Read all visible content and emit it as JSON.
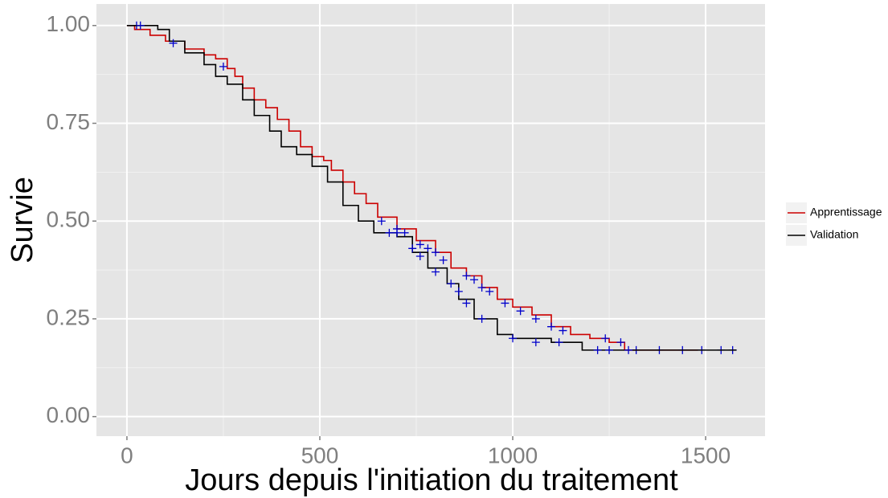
{
  "chart_data": {
    "type": "step",
    "xlabel": "Jours depuis l'initiation du traitement",
    "ylabel": "Survie",
    "xlim": [
      -79,
      1654
    ],
    "ylim": [
      -0.05,
      1.055
    ],
    "xticks": [
      0,
      500,
      1000,
      1500
    ],
    "yticks": [
      {
        "value": 0,
        "label": "0.00"
      },
      {
        "value": 0.25,
        "label": "0.25"
      },
      {
        "value": 0.5,
        "label": "0.50"
      },
      {
        "value": 0.75,
        "label": "0.75"
      },
      {
        "value": 1,
        "label": "1.00"
      }
    ],
    "grid": true,
    "minor_grid": true,
    "legend": "right",
    "censor_color": "#0000cc",
    "series": [
      {
        "name": "Apprentissage",
        "color": "#cc0000",
        "x": [
          0,
          20,
          60,
          100,
          150,
          200,
          230,
          260,
          280,
          300,
          330,
          360,
          390,
          420,
          450,
          480,
          510,
          530,
          560,
          590,
          620,
          650,
          700,
          750,
          800,
          840,
          880,
          920,
          960,
          1000,
          1050,
          1100,
          1150,
          1200,
          1250,
          1290,
          1480
        ],
        "values": [
          1.0,
          0.99,
          0.975,
          0.96,
          0.94,
          0.925,
          0.915,
          0.89,
          0.87,
          0.84,
          0.81,
          0.79,
          0.76,
          0.73,
          0.69,
          0.665,
          0.655,
          0.63,
          0.6,
          0.57,
          0.545,
          0.51,
          0.48,
          0.45,
          0.42,
          0.38,
          0.36,
          0.33,
          0.3,
          0.28,
          0.26,
          0.23,
          0.21,
          0.2,
          0.19,
          0.17,
          0.17
        ],
        "censored_x": [
          25,
          250,
          660,
          700,
          720,
          760,
          780,
          800,
          820,
          880,
          900,
          920,
          940,
          980,
          1020,
          1060,
          1100,
          1130,
          1240,
          1280,
          1320,
          1380,
          1440,
          1490,
          1540,
          1570
        ],
        "censored_y": [
          1.0,
          0.895,
          0.5,
          0.48,
          0.47,
          0.44,
          0.43,
          0.42,
          0.4,
          0.36,
          0.35,
          0.33,
          0.32,
          0.29,
          0.27,
          0.25,
          0.23,
          0.22,
          0.2,
          0.19,
          0.17,
          0.17,
          0.17,
          0.17,
          0.17,
          0.17
        ]
      },
      {
        "name": "Validation",
        "color": "#000000",
        "x": [
          0,
          40,
          80,
          110,
          150,
          200,
          230,
          260,
          300,
          330,
          370,
          400,
          440,
          480,
          520,
          560,
          600,
          640,
          700,
          740,
          780,
          830,
          860,
          900,
          960,
          1000,
          1100,
          1180,
          1580
        ],
        "values": [
          1.0,
          1.0,
          0.99,
          0.96,
          0.93,
          0.9,
          0.87,
          0.85,
          0.81,
          0.77,
          0.73,
          0.69,
          0.67,
          0.64,
          0.6,
          0.54,
          0.5,
          0.47,
          0.46,
          0.42,
          0.38,
          0.34,
          0.3,
          0.25,
          0.21,
          0.2,
          0.19,
          0.17,
          0.17
        ],
        "censored_x": [
          35,
          120,
          680,
          700,
          740,
          760,
          800,
          840,
          860,
          880,
          920,
          1000,
          1060,
          1120,
          1220,
          1250,
          1300
        ],
        "censored_y": [
          1.0,
          0.955,
          0.47,
          0.47,
          0.43,
          0.41,
          0.37,
          0.34,
          0.32,
          0.29,
          0.25,
          0.2,
          0.19,
          0.19,
          0.17,
          0.17,
          0.17
        ]
      }
    ]
  }
}
